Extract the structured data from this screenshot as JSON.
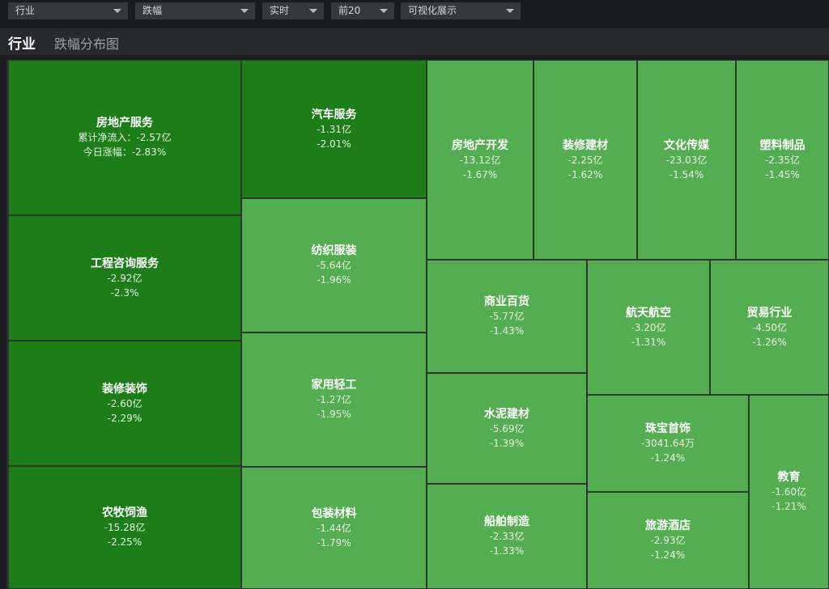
{
  "toolbar": {
    "dropdowns": [
      {
        "value": "行业"
      },
      {
        "value": "跌幅"
      },
      {
        "value": "实时"
      },
      {
        "value": "前20"
      },
      {
        "value": "可视化展示"
      }
    ]
  },
  "header": {
    "title": "行业",
    "subtitle": "跌幅分布图"
  },
  "treemap": {
    "tiles": [
      {
        "name": "房地产服务",
        "inflow": "累计净流入：-2.57亿",
        "change": "今日涨幅：-2.83%",
        "color": "#1d7d19"
      },
      {
        "name": "工程咨询服务",
        "inflow": "-2.92亿",
        "change": "-2.3%",
        "color": "#1d7d19"
      },
      {
        "name": "装修装饰",
        "inflow": "-2.60亿",
        "change": "-2.29%",
        "color": "#1d7d19"
      },
      {
        "name": "农牧饲渔",
        "inflow": "-15.28亿",
        "change": "-2.25%",
        "color": "#1d7d19"
      },
      {
        "name": "汽车服务",
        "inflow": "-1.31亿",
        "change": "-2.01%",
        "color": "#1d7d19"
      },
      {
        "name": "纺织服装",
        "inflow": "-5.64亿",
        "change": "-1.96%",
        "color": "#55ad51"
      },
      {
        "name": "家用轻工",
        "inflow": "-1.27亿",
        "change": "-1.95%",
        "color": "#55ad51"
      },
      {
        "name": "包装材料",
        "inflow": "-1.44亿",
        "change": "-1.79%",
        "color": "#55ad51"
      },
      {
        "name": "房地产开发",
        "inflow": "-13.12亿",
        "change": "-1.67%",
        "color": "#55ad51"
      },
      {
        "name": "装修建材",
        "inflow": "-2.25亿",
        "change": "-1.62%",
        "color": "#55ad51"
      },
      {
        "name": "文化传媒",
        "inflow": "-23.03亿",
        "change": "-1.54%",
        "color": "#55ad51"
      },
      {
        "name": "塑料制品",
        "inflow": "-2.35亿",
        "change": "-1.45%",
        "color": "#55ad51"
      },
      {
        "name": "商业百货",
        "inflow": "-5.77亿",
        "change": "-1.43%",
        "color": "#55ad51"
      },
      {
        "name": "航天航空",
        "inflow": "-3.20亿",
        "change": "-1.31%",
        "color": "#55ad51"
      },
      {
        "name": "贸易行业",
        "inflow": "-4.50亿",
        "change": "-1.26%",
        "color": "#55ad51"
      },
      {
        "name": "水泥建材",
        "inflow": "-5.69亿",
        "change": "-1.39%",
        "color": "#55ad51"
      },
      {
        "name": "珠宝首饰",
        "inflow": "-3041.64万",
        "change": "-1.24%",
        "color": "#55ad51"
      },
      {
        "name": "教育",
        "inflow": "-1.60亿",
        "change": "-1.21%",
        "color": "#55ad51"
      },
      {
        "name": "船舶制造",
        "inflow": "-2.33亿",
        "change": "-1.33%",
        "color": "#55ad51"
      },
      {
        "name": "旅游酒店",
        "inflow": "-2.93亿",
        "change": "-1.24%",
        "color": "#55ad51"
      }
    ]
  }
}
